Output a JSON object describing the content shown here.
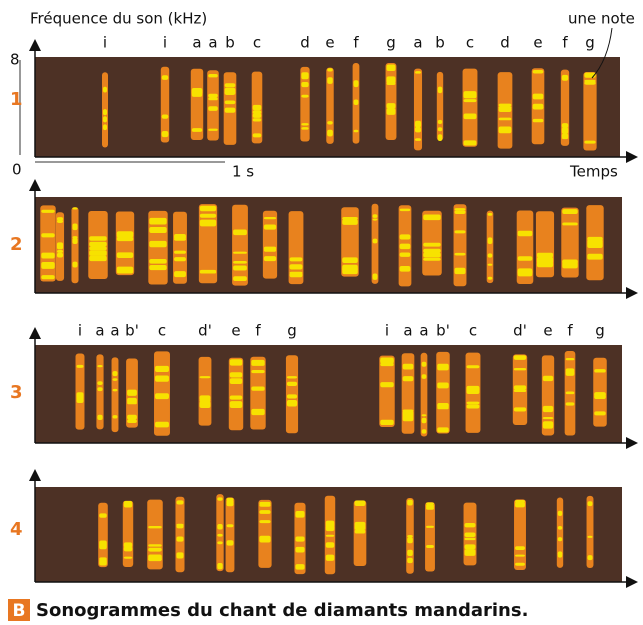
{
  "axis": {
    "y_label": "Fréquence du son (kHz)",
    "y_max": "8",
    "y_min": "0",
    "scale_bar": "1 s",
    "x_label": "Temps",
    "note_callout": "une note"
  },
  "panels": [
    {
      "label": "1",
      "notes": [
        "i",
        "i",
        "a",
        "a",
        "b",
        "c",
        "d",
        "e",
        "f",
        "g",
        "a",
        "b",
        "c",
        "d",
        "e",
        "f",
        "g"
      ]
    },
    {
      "label": "2",
      "notes": []
    },
    {
      "label": "3",
      "notes": [
        "i",
        "a",
        "a",
        "b'",
        "c",
        "d'",
        "e",
        "f",
        "g",
        "i",
        "a",
        "a",
        "b'",
        "c",
        "d'",
        "e",
        "f",
        "g"
      ]
    },
    {
      "label": "4",
      "notes": []
    }
  ],
  "caption": {
    "letter": "B",
    "text": "Sonogrammes  du chant de diamants mandarins."
  }
}
